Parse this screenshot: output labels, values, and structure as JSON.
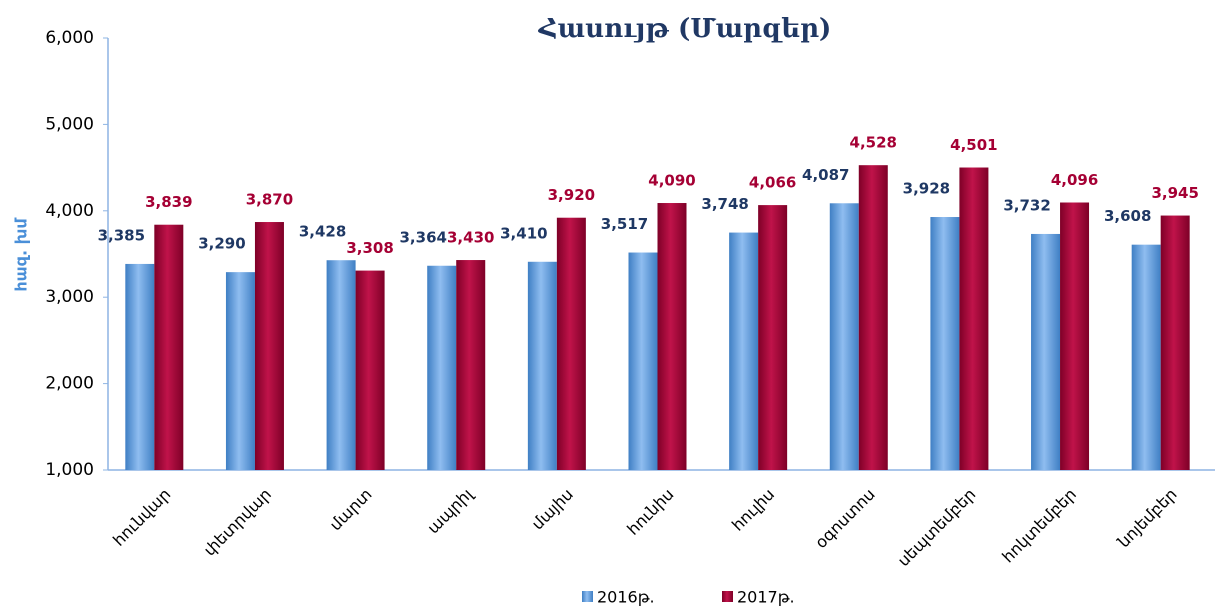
{
  "chart_data": {
    "type": "bar",
    "title": "Հասույթ (Մարզեր)",
    "y_label": "հազ. խմ",
    "categories": [
      "հունվար",
      "փետրվար",
      "մարտ",
      "ապրիլ",
      "մայիս",
      "հունիս",
      "հուլիս",
      "օգոստոս",
      "սեպտեմբեր",
      "հոկտեմբեր",
      "նոյեմբեր"
    ],
    "series": [
      {
        "name": "2016թ.",
        "color": "#5b9bd5",
        "label_color": "#1f3864",
        "values": [
          3385,
          3290,
          3428,
          3364,
          3410,
          3517,
          3748,
          4087,
          3928,
          3732,
          3608
        ],
        "value_labels": [
          "3,385",
          "3,290",
          "3,428",
          "3,364",
          "3,410",
          "3,517",
          "3,748",
          "4,087",
          "3,928",
          "3,732",
          "3,608"
        ]
      },
      {
        "name": "2017թ.",
        "color": "#a50034",
        "label_color": "#a50034",
        "values": [
          3839,
          3870,
          3308,
          3430,
          3920,
          4090,
          4066,
          4528,
          4501,
          4096,
          3945
        ],
        "value_labels": [
          "3,839",
          "3,870",
          "3,308",
          "3,430",
          "3,920",
          "4,090",
          "4,066",
          "4,528",
          "4,501",
          "4,096",
          "3,945"
        ]
      }
    ],
    "ylim": [
      1000,
      6000
    ],
    "yticks": [
      {
        "value": 1000,
        "label": "1,000"
      },
      {
        "value": 2000,
        "label": "2,000"
      },
      {
        "value": 3000,
        "label": "3,000"
      },
      {
        "value": 4000,
        "label": "4,000"
      },
      {
        "value": 5000,
        "label": "5,000"
      },
      {
        "value": 6000,
        "label": "6,000"
      }
    ],
    "grid": false
  }
}
